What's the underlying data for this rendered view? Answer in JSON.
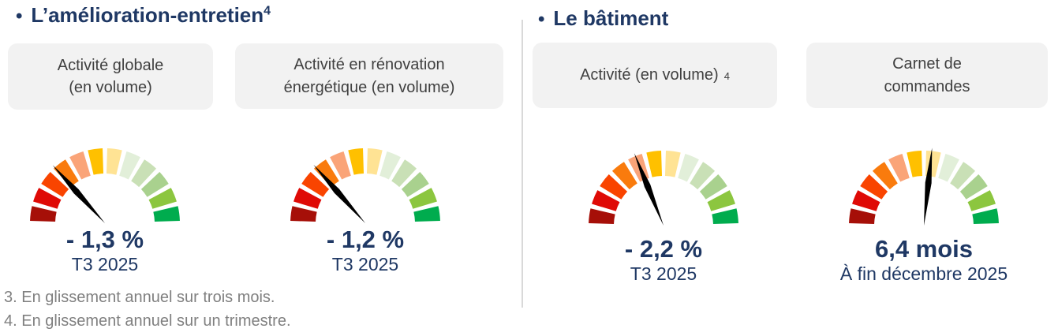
{
  "colors": {
    "navy": "#1F3864",
    "card_bg": "#F2F2F2",
    "card_text": "#404040",
    "footnote": "#808080",
    "divider": "#D9D9D9",
    "needle": "#000000"
  },
  "gauge_palette": [
    "#A60F08",
    "#DF0A06",
    "#F94400",
    "#F97B0D",
    "#FAA478",
    "#FFC000",
    "#FFE394",
    "#E2EFD9",
    "#C9E0B6",
    "#A9D18E",
    "#8CC63F",
    "#00AC4E"
  ],
  "left_section": {
    "bullet": "•",
    "title": "L’amélioration-entretien",
    "title_sup": "4"
  },
  "right_section": {
    "bullet": "•",
    "title": "Le bâtiment"
  },
  "cards": {
    "c1_line1": "Activité globale",
    "c1_line2": "(en volume)",
    "c2_line1": "Activité en rénovation",
    "c2_line2": "énergétique (en volume)",
    "c3_text": "Activité (en volume)",
    "c3_sup": "4",
    "c4_line1": "Carnet de",
    "c4_line2": "commandes"
  },
  "gauges": [
    {
      "label": "Activité globale (en volume)",
      "value": "- 1,3 %",
      "period": "T3 2025",
      "needle_deg": 132,
      "segments": 12
    },
    {
      "label": "Activité en rénovation énergétique (en volume)",
      "value": "- 1,2 %",
      "period": "T3 2025",
      "needle_deg": 131.5,
      "segments": 12
    },
    {
      "label": "Activité (en volume)",
      "value": "- 2,2 %",
      "period": "T3 2025",
      "needle_deg": 112,
      "segments": 12
    },
    {
      "label": "Carnet de commandes",
      "value": "6,4 mois",
      "period": "À fin décembre 2025",
      "needle_deg": 84,
      "segments": 12
    }
  ],
  "footnotes": [
    "3. En glissement annuel sur trois mois.",
    "4. En glissement annuel sur un trimestre."
  ],
  "chart_data": [
    {
      "type": "gauge",
      "section": "L’amélioration-entretien",
      "title": "Activité globale (en volume)",
      "value": -1.3,
      "unit": "%",
      "value_label": "- 1,3 %",
      "period": "T3 2025",
      "scale": "red (bad) to green (good), 12 segments over 180°",
      "needle_angle_deg": 132
    },
    {
      "type": "gauge",
      "section": "L’amélioration-entretien",
      "title": "Activité en rénovation énergétique (en volume)",
      "value": -1.2,
      "unit": "%",
      "value_label": "- 1,2 %",
      "period": "T3 2025",
      "scale": "red (bad) to green (good), 12 segments over 180°",
      "needle_angle_deg": 131.5
    },
    {
      "type": "gauge",
      "section": "Le bâtiment",
      "title": "Activité (en volume)",
      "value": -2.2,
      "unit": "%",
      "value_label": "- 2,2 %",
      "period": "T3 2025",
      "scale": "red (bad) to green (good), 12 segments over 180°",
      "needle_angle_deg": 112
    },
    {
      "type": "gauge",
      "section": "Le bâtiment",
      "title": "Carnet de commandes",
      "value": 6.4,
      "unit": "mois",
      "value_label": "6,4 mois",
      "period": "À fin décembre 2025",
      "scale": "red (bad) to green (good), 12 segments over 180°",
      "needle_angle_deg": 84
    }
  ]
}
